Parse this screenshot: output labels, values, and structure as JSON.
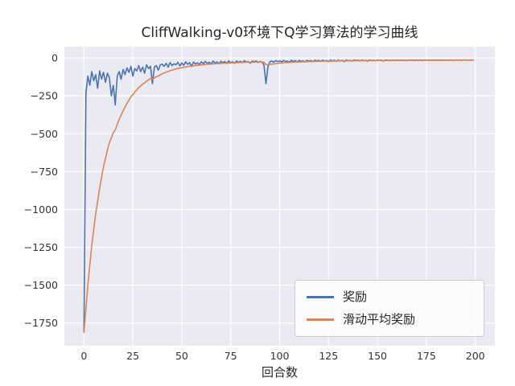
{
  "chart_data": {
    "type": "line",
    "title": "CliffWalking-v0环境下Q学习算法的学习曲线",
    "xlabel": "回合数",
    "ylabel": "",
    "xlim": [
      -10,
      210
    ],
    "ylim": [
      -1900,
      75
    ],
    "xticks": [
      0,
      25,
      50,
      75,
      100,
      125,
      150,
      175,
      200
    ],
    "yticks": [
      0,
      -250,
      -500,
      -750,
      -1000,
      -1250,
      -1500,
      -1750
    ],
    "grid": true,
    "plot_bg": "#eaeaf2",
    "grid_color": "#ffffff",
    "legend_position": "lower right",
    "x_start": 0,
    "x_step": 1,
    "series": [
      {
        "id": "reward",
        "name": "奖励",
        "color": "#4c72b0",
        "values": [
          -1812,
          -230,
          -120,
          -180,
          -90,
          -150,
          -110,
          -200,
          -85,
          -140,
          -95,
          -160,
          -100,
          -130,
          -250,
          -180,
          -310,
          -120,
          -90,
          -140,
          -75,
          -110,
          -65,
          -95,
          -55,
          -120,
          -70,
          -85,
          -50,
          -90,
          -60,
          -100,
          -45,
          -70,
          -55,
          -170,
          -60,
          -50,
          -80,
          -45,
          -40,
          -55,
          -35,
          -60,
          -30,
          -50,
          -38,
          -45,
          -28,
          -52,
          -33,
          -48,
          -25,
          -42,
          -30,
          -55,
          -27,
          -40,
          -32,
          -45,
          -25,
          -38,
          -22,
          -35,
          -28,
          -40,
          -20,
          -33,
          -26,
          -38,
          -21,
          -30,
          -24,
          -36,
          -19,
          -32,
          -25,
          -35,
          -20,
          -28,
          -22,
          -30,
          -18,
          -28,
          -24,
          -35,
          -20,
          -26,
          -19,
          -30,
          -22,
          -28,
          -45,
          -170,
          -60,
          -25,
          -20,
          -28,
          -17,
          -24,
          -19,
          -26,
          -16,
          -24,
          -20,
          -28,
          -15,
          -22,
          -18,
          -26,
          -16,
          -23,
          -19,
          -27,
          -15,
          -21,
          -17,
          -25,
          -14,
          -20,
          -16,
          -22,
          -14,
          -20,
          -17,
          -24,
          -13,
          -19,
          -15,
          -22,
          -14,
          -20,
          -16,
          -23,
          -13,
          -18,
          -15,
          -21,
          -13,
          -17,
          -14,
          -19,
          -13,
          -18,
          -15,
          -21,
          -13,
          -17,
          -14,
          -19,
          -13,
          -17,
          -14,
          -20,
          -13,
          -16,
          -14,
          -18,
          -13,
          -16,
          -13,
          -17,
          -13,
          -16,
          -14,
          -18,
          -13,
          -15,
          -13,
          -17,
          -13,
          -15,
          -13,
          -17,
          -13,
          -15,
          -13,
          -16,
          -13,
          -15,
          -13,
          -16,
          -13,
          -15,
          -13,
          -16,
          -13,
          -15,
          -13,
          -16,
          -13,
          -14,
          -13,
          -15,
          -13,
          -14,
          -13,
          -15,
          -13,
          -14
        ]
      },
      {
        "id": "moving-average",
        "name": "滑动平均奖励",
        "color": "#dd8452",
        "values": [
          -1812,
          -1653.8,
          -1500.4,
          -1368.4,
          -1240.5,
          -1131.5,
          -1029.3,
          -946.4,
          -860.3,
          -788.2,
          -718.9,
          -663,
          -606.7,
          -559,
          -528.1,
          -493.3,
          -475,
          -439.5,
          -404.5,
          -378.1,
          -347.8,
          -324,
          -298.1,
          -277.8,
          -255.5,
          -242,
          -224.8,
          -210.8,
          -194.7,
          -184.2,
          -171.8,
          -164.6,
          -152.6,
          -144.3,
          -135.4,
          -138.9,
          -131,
          -122.9,
          -118.6,
          -111.2,
          -104.1,
          -99.2,
          -92.8,
          -89.5,
          -83.6,
          -80.2,
          -76,
          -72.9,
          -68.4,
          -66.8,
          -63.4,
          -61.9,
          -58.2,
          -56.6,
          -53.9,
          -54,
          -51.3,
          -50.2,
          -48.4,
          -48.1,
          -45.8,
          -45,
          -42.7,
          -41.9,
          -40.5,
          -40.5,
          -38.5,
          -38,
          -36.8,
          -36.9,
          -35.3,
          -34.8,
          -33.7,
          -33.9,
          -32.4,
          -32.4,
          -31.7,
          -32,
          -30.8,
          -30.5,
          -29.7,
          -29.7,
          -28.5,
          -28.5,
          -28.1,
          -28.8,
          -27.9,
          -27.7,
          -26.8,
          -27.1,
          -26.6,
          -26.7,
          -28.5,
          -42.7,
          -44.4,
          -42.5,
          -40.3,
          -39.1,
          -36.9,
          -35.6,
          -33.9,
          -33.1,
          -31.4,
          -30.7,
          -29.6,
          -29.4,
          -28,
          -27.4,
          -26.5,
          -26.5,
          -25.5,
          -25.3,
          -24.7,
          -24.9,
          -23.9,
          -23.6,
          -22.9,
          -23.1,
          -22.2,
          -22,
          -21.4,
          -21.5,
          -20.8,
          -20.7,
          -20.3,
          -20.7,
          -19.9,
          -19.8,
          -19.3,
          -19.6,
          -19,
          -19.1,
          -18.8,
          -19.2,
          -18.6,
          -18.5,
          -18.2,
          -18.5,
          -17.9,
          -17.8,
          -17.4,
          -17.6,
          -17.1,
          -17.2,
          -17,
          -17.4,
          -16.9,
          -16.9,
          -16.6,
          -16.9,
          -16.5,
          -16.5,
          -16.3,
          -16.6,
          -16.3,
          -16.2,
          -16,
          -16.2,
          -15.9,
          -15.9,
          -15.6,
          -15.8,
          -15.5,
          -15.5,
          -15.4,
          -15.6,
          -15.4,
          -15.3,
          -15.1,
          -15.3,
          -15.1,
          -15.1,
          -14.9,
          -15.1,
          -14.9,
          -14.9,
          -14.7,
          -14.8,
          -14.7,
          -14.7,
          -14.5,
          -14.7,
          -14.5,
          -14.6,
          -14.4,
          -14.6,
          -14.4,
          -14.5,
          -14.3,
          -14.5,
          -14.3,
          -14.3,
          -14.2,
          -14.3,
          -14.1,
          -14.1,
          -14,
          -14.1,
          -14,
          -14
        ]
      }
    ]
  }
}
